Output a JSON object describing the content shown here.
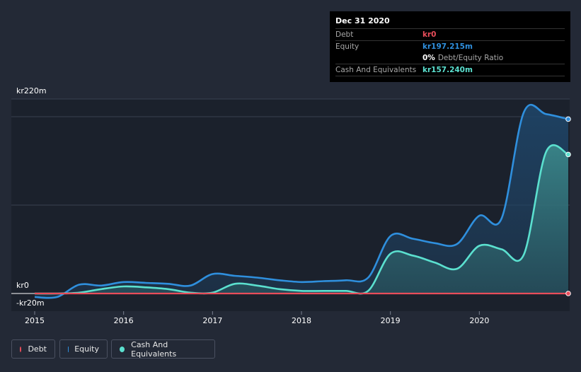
{
  "tooltip": {
    "date": "Dec 31 2020",
    "rows": [
      {
        "label": "Debt",
        "value": "kr0"
      },
      {
        "label": "Equity",
        "value": "kr197.215m"
      },
      {
        "label": "",
        "value": "0%",
        "extra": "Debt/Equity Ratio"
      },
      {
        "label": "Cash And Equivalents",
        "value": "kr157.240m"
      }
    ]
  },
  "legend": [
    {
      "label": "Debt"
    },
    {
      "label": "Equity"
    },
    {
      "label": "Cash And Equivalents"
    }
  ],
  "colors": {
    "debt": "#e84d5a",
    "equity": "#2f8fdd",
    "cash": "#5be0cf",
    "background": "#232936",
    "plot": "#1b212c"
  },
  "chart_data": {
    "type": "area",
    "ylabels": [
      "kr220m",
      "kr0",
      "-kr20m"
    ],
    "ylim": [
      -20,
      220
    ],
    "xlim": [
      2015,
      2021
    ],
    "xticks": [
      "2015",
      "2016",
      "2017",
      "2018",
      "2019",
      "2020"
    ],
    "series": [
      {
        "name": "Equity",
        "points": [
          [
            2015.0,
            -4
          ],
          [
            2015.25,
            -4
          ],
          [
            2015.5,
            10
          ],
          [
            2015.75,
            9
          ],
          [
            2016.0,
            13
          ],
          [
            2016.25,
            12
          ],
          [
            2016.5,
            11
          ],
          [
            2016.75,
            9
          ],
          [
            2017.0,
            22
          ],
          [
            2017.25,
            20
          ],
          [
            2017.5,
            18
          ],
          [
            2017.75,
            15
          ],
          [
            2018.0,
            13
          ],
          [
            2018.25,
            14
          ],
          [
            2018.5,
            15
          ],
          [
            2018.75,
            18
          ],
          [
            2019.0,
            65
          ],
          [
            2019.25,
            62
          ],
          [
            2019.5,
            57
          ],
          [
            2019.75,
            56
          ],
          [
            2020.0,
            88
          ],
          [
            2020.25,
            85
          ],
          [
            2020.5,
            205
          ],
          [
            2020.75,
            203
          ],
          [
            2021.0,
            197.215
          ]
        ]
      },
      {
        "name": "Cash And Equivalents",
        "points": [
          [
            2015.0,
            0
          ],
          [
            2015.25,
            0
          ],
          [
            2015.5,
            1
          ],
          [
            2015.75,
            5
          ],
          [
            2016.0,
            8
          ],
          [
            2016.25,
            7
          ],
          [
            2016.5,
            5
          ],
          [
            2016.75,
            1
          ],
          [
            2017.0,
            1
          ],
          [
            2017.25,
            11
          ],
          [
            2017.5,
            9
          ],
          [
            2017.75,
            5
          ],
          [
            2018.0,
            3
          ],
          [
            2018.25,
            3
          ],
          [
            2018.5,
            3
          ],
          [
            2018.75,
            3
          ],
          [
            2019.0,
            45
          ],
          [
            2019.25,
            43
          ],
          [
            2019.5,
            35
          ],
          [
            2019.75,
            28
          ],
          [
            2020.0,
            54
          ],
          [
            2020.25,
            50
          ],
          [
            2020.5,
            44
          ],
          [
            2020.75,
            160
          ],
          [
            2021.0,
            157.24
          ]
        ]
      },
      {
        "name": "Debt",
        "points": [
          [
            2015.0,
            0
          ],
          [
            2021.0,
            0
          ]
        ]
      }
    ]
  }
}
